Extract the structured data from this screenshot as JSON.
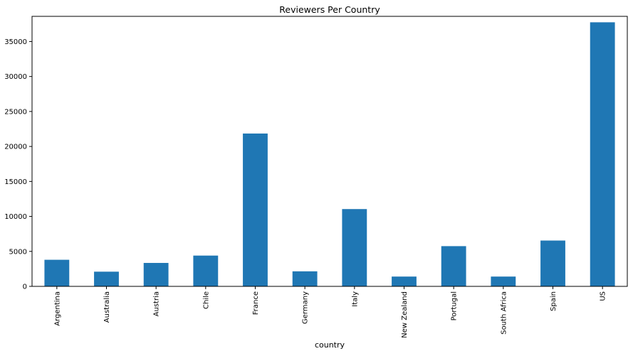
{
  "chart_data": {
    "type": "bar",
    "title": "Reviewers Per Country",
    "xlabel": "country",
    "ylabel": "",
    "categories": [
      "Argentina",
      "Australia",
      "Austria",
      "Chile",
      "France",
      "Germany",
      "Italy",
      "New Zealand",
      "Portugal",
      "South Africa",
      "Spain",
      "US"
    ],
    "values": [
      3800,
      2100,
      3350,
      4400,
      21850,
      2150,
      11050,
      1400,
      5750,
      1400,
      6550,
      37750
    ],
    "ylim": [
      0,
      38600
    ],
    "yticks": [
      0,
      5000,
      10000,
      15000,
      20000,
      25000,
      30000,
      35000
    ],
    "grid": false,
    "legend": "none",
    "bar_color": "#1f77b4"
  }
}
